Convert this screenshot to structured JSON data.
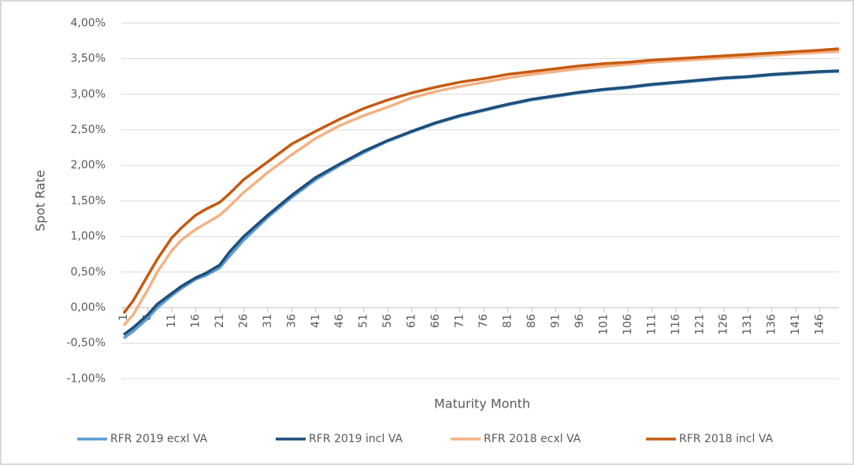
{
  "chart_data": {
    "type": "line",
    "y_label": "Spot Rate",
    "x_label": "Maturity Month",
    "x": [
      1,
      3,
      6,
      8,
      11,
      13,
      16,
      18,
      21,
      23,
      26,
      31,
      36,
      41,
      46,
      51,
      56,
      61,
      66,
      71,
      76,
      81,
      86,
      91,
      96,
      101,
      106,
      111,
      116,
      121,
      126,
      131,
      136,
      141,
      146,
      150
    ],
    "series": [
      {
        "name": "RFR 2019 ecxl VA",
        "color": "#5b9bd5",
        "values": [
          -0.43,
          -0.33,
          -0.15,
          0.0,
          0.17,
          0.27,
          0.4,
          0.45,
          0.56,
          0.72,
          0.95,
          1.27,
          1.55,
          1.8,
          2.0,
          2.18,
          2.34,
          2.47,
          2.59,
          2.69,
          2.77,
          2.85,
          2.92,
          2.97,
          3.02,
          3.06,
          3.09,
          3.13,
          3.16,
          3.19,
          3.22,
          3.24,
          3.27,
          3.29,
          3.31,
          3.32
        ]
      },
      {
        "name": "RFR 2019 incl VA",
        "color": "#1f4e79",
        "values": [
          -0.38,
          -0.28,
          -0.1,
          0.05,
          0.2,
          0.3,
          0.42,
          0.48,
          0.6,
          0.78,
          1.0,
          1.3,
          1.58,
          1.83,
          2.02,
          2.2,
          2.35,
          2.48,
          2.6,
          2.7,
          2.78,
          2.86,
          2.93,
          2.98,
          3.03,
          3.07,
          3.1,
          3.14,
          3.17,
          3.2,
          3.23,
          3.25,
          3.28,
          3.3,
          3.32,
          3.33
        ]
      },
      {
        "name": "RFR 2018 ecxl VA",
        "color": "#f4b183",
        "values": [
          -0.25,
          -0.1,
          0.25,
          0.5,
          0.8,
          0.95,
          1.1,
          1.18,
          1.3,
          1.42,
          1.62,
          1.9,
          2.15,
          2.38,
          2.56,
          2.7,
          2.82,
          2.95,
          3.04,
          3.11,
          3.17,
          3.23,
          3.28,
          3.32,
          3.36,
          3.39,
          3.42,
          3.45,
          3.47,
          3.49,
          3.51,
          3.53,
          3.55,
          3.57,
          3.59,
          3.6
        ]
      },
      {
        "name": "RFR 2018 incl VA",
        "color": "#c55a11",
        "values": [
          -0.08,
          0.1,
          0.45,
          0.68,
          0.98,
          1.12,
          1.3,
          1.38,
          1.48,
          1.6,
          1.8,
          2.05,
          2.3,
          2.48,
          2.65,
          2.8,
          2.92,
          3.02,
          3.1,
          3.17,
          3.22,
          3.28,
          3.32,
          3.36,
          3.4,
          3.43,
          3.45,
          3.48,
          3.5,
          3.52,
          3.54,
          3.56,
          3.58,
          3.6,
          3.62,
          3.64
        ]
      }
    ],
    "xlim": [
      1,
      150
    ],
    "xticks": [
      1,
      6,
      11,
      16,
      21,
      26,
      31,
      36,
      41,
      46,
      51,
      56,
      61,
      66,
      71,
      76,
      81,
      86,
      91,
      96,
      101,
      106,
      111,
      116,
      121,
      126,
      131,
      136,
      141,
      146
    ],
    "ylim": [
      -1,
      4
    ],
    "yticks": [
      {
        "value": -1,
        "label": "-1,00%"
      },
      {
        "value": -0.5,
        "label": "-0,50%"
      },
      {
        "value": 0,
        "label": "0,00%"
      },
      {
        "value": 0.5,
        "label": "0,50%"
      },
      {
        "value": 1,
        "label": "1,00%"
      },
      {
        "value": 1.5,
        "label": "1,50%"
      },
      {
        "value": 2,
        "label": "2,00%"
      },
      {
        "value": 2.5,
        "label": "2,50%"
      },
      {
        "value": 3,
        "label": "3,00%"
      },
      {
        "value": 3.5,
        "label": "3,50%"
      },
      {
        "value": 4,
        "label": "4,00%"
      }
    ],
    "grid": true,
    "legend": "bottom"
  }
}
